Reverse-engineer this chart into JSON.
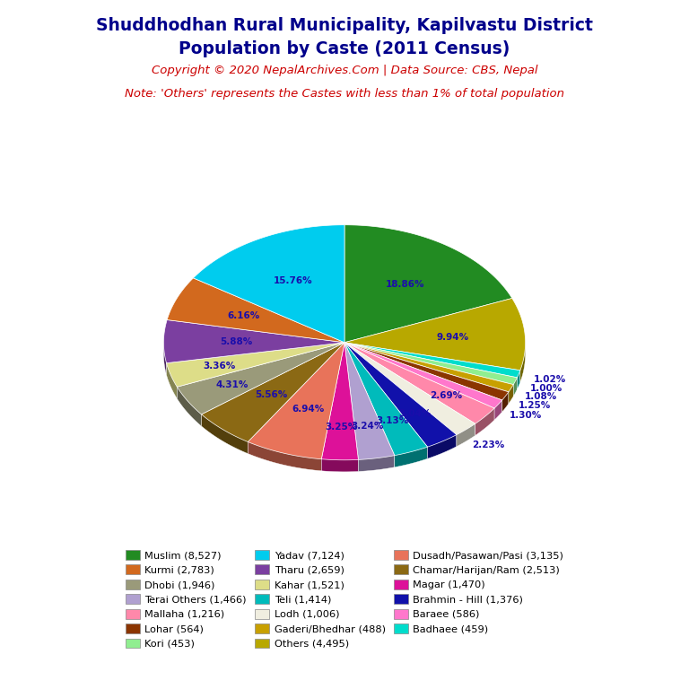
{
  "title_line1": "Shuddhodhan Rural Municipality, Kapilvastu District",
  "title_line2": "Population by Caste (2011 Census)",
  "copyright": "Copyright © 2020 NepalArchives.Com | Data Source: CBS, Nepal",
  "note": "Note: 'Others' represents the Castes with less than 1% of total population",
  "slices": [
    {
      "label": "Muslim",
      "value": 8527,
      "color": "#228B22"
    },
    {
      "label": "Others",
      "value": 4495,
      "color": "#B8A800"
    },
    {
      "label": "Dusadh/Pasawan/Pasi",
      "value": 3135,
      "color": "#E8735A"
    },
    {
      "label": "Chamar/Harijan/Ram",
      "value": 2513,
      "color": "#8B6914"
    },
    {
      "label": "Kurmi",
      "value": 2783,
      "color": "#D2691E"
    },
    {
      "label": "Tharu",
      "value": 2659,
      "color": "#7B3FA0"
    },
    {
      "label": "Dhobi",
      "value": 1946,
      "color": "#9A9A7A"
    },
    {
      "label": "Kahar",
      "value": 1521,
      "color": "#DDDD88"
    },
    {
      "label": "Terai Others",
      "value": 1466,
      "color": "#B0A0D0"
    },
    {
      "label": "Teli",
      "value": 1414,
      "color": "#00BBBB"
    },
    {
      "label": "Mallaha",
      "value": 1216,
      "color": "#FF88AA"
    },
    {
      "label": "Lodh",
      "value": 1006,
      "color": "#F0EEE0"
    },
    {
      "label": "Lohar",
      "value": 564,
      "color": "#8B3500"
    },
    {
      "label": "Gaderi/Bhedhar",
      "value": 488,
      "color": "#C8A000"
    },
    {
      "label": "Kori",
      "value": 453,
      "color": "#90EE90"
    },
    {
      "label": "Magar",
      "value": 1470,
      "color": "#DD1199"
    },
    {
      "label": "Brahmin - Hill",
      "value": 1376,
      "color": "#1111AA"
    },
    {
      "label": "Baraee",
      "value": 586,
      "color": "#FF77CC"
    },
    {
      "label": "Badhaee",
      "value": 459,
      "color": "#00DDCC"
    },
    {
      "label": "Yadav",
      "value": 7124,
      "color": "#00CCEE"
    }
  ],
  "legend_order": [
    {
      "label": "Muslim",
      "value": 8527,
      "color": "#228B22"
    },
    {
      "label": "Kurmi",
      "value": 2783,
      "color": "#D2691E"
    },
    {
      "label": "Dhobi",
      "value": 1946,
      "color": "#9A9A7A"
    },
    {
      "label": "Terai Others",
      "value": 1466,
      "color": "#B0A0D0"
    },
    {
      "label": "Mallaha",
      "value": 1216,
      "color": "#FF88AA"
    },
    {
      "label": "Lohar",
      "value": 564,
      "color": "#8B3500"
    },
    {
      "label": "Kori",
      "value": 453,
      "color": "#90EE90"
    },
    {
      "label": "Yadav",
      "value": 7124,
      "color": "#00CCEE"
    },
    {
      "label": "Tharu",
      "value": 2659,
      "color": "#7B3FA0"
    },
    {
      "label": "Kahar",
      "value": 1521,
      "color": "#DDDD88"
    },
    {
      "label": "Teli",
      "value": 1414,
      "color": "#00BBBB"
    },
    {
      "label": "Lodh",
      "value": 1006,
      "color": "#F0EEE0"
    },
    {
      "label": "Gaderi/Bhedhar",
      "value": 488,
      "color": "#C8A000"
    },
    {
      "label": "Others",
      "value": 4495,
      "color": "#B8A800"
    },
    {
      "label": "Dusadh/Pasawan/Pasi",
      "value": 3135,
      "color": "#E8735A"
    },
    {
      "label": "Chamar/Harijan/Ram",
      "value": 2513,
      "color": "#8B6914"
    },
    {
      "label": "Magar",
      "value": 1470,
      "color": "#DD1199"
    },
    {
      "label": "Brahmin - Hill",
      "value": 1376,
      "color": "#1111AA"
    },
    {
      "label": "Baraee",
      "value": 586,
      "color": "#FF77CC"
    },
    {
      "label": "Badhaee",
      "value": 459,
      "color": "#00DDCC"
    }
  ],
  "label_color": "#1A0DAB",
  "title_color": "#00008B",
  "copyright_color": "#CC0000",
  "note_color": "#CC0000",
  "background_color": "#FFFFFF"
}
